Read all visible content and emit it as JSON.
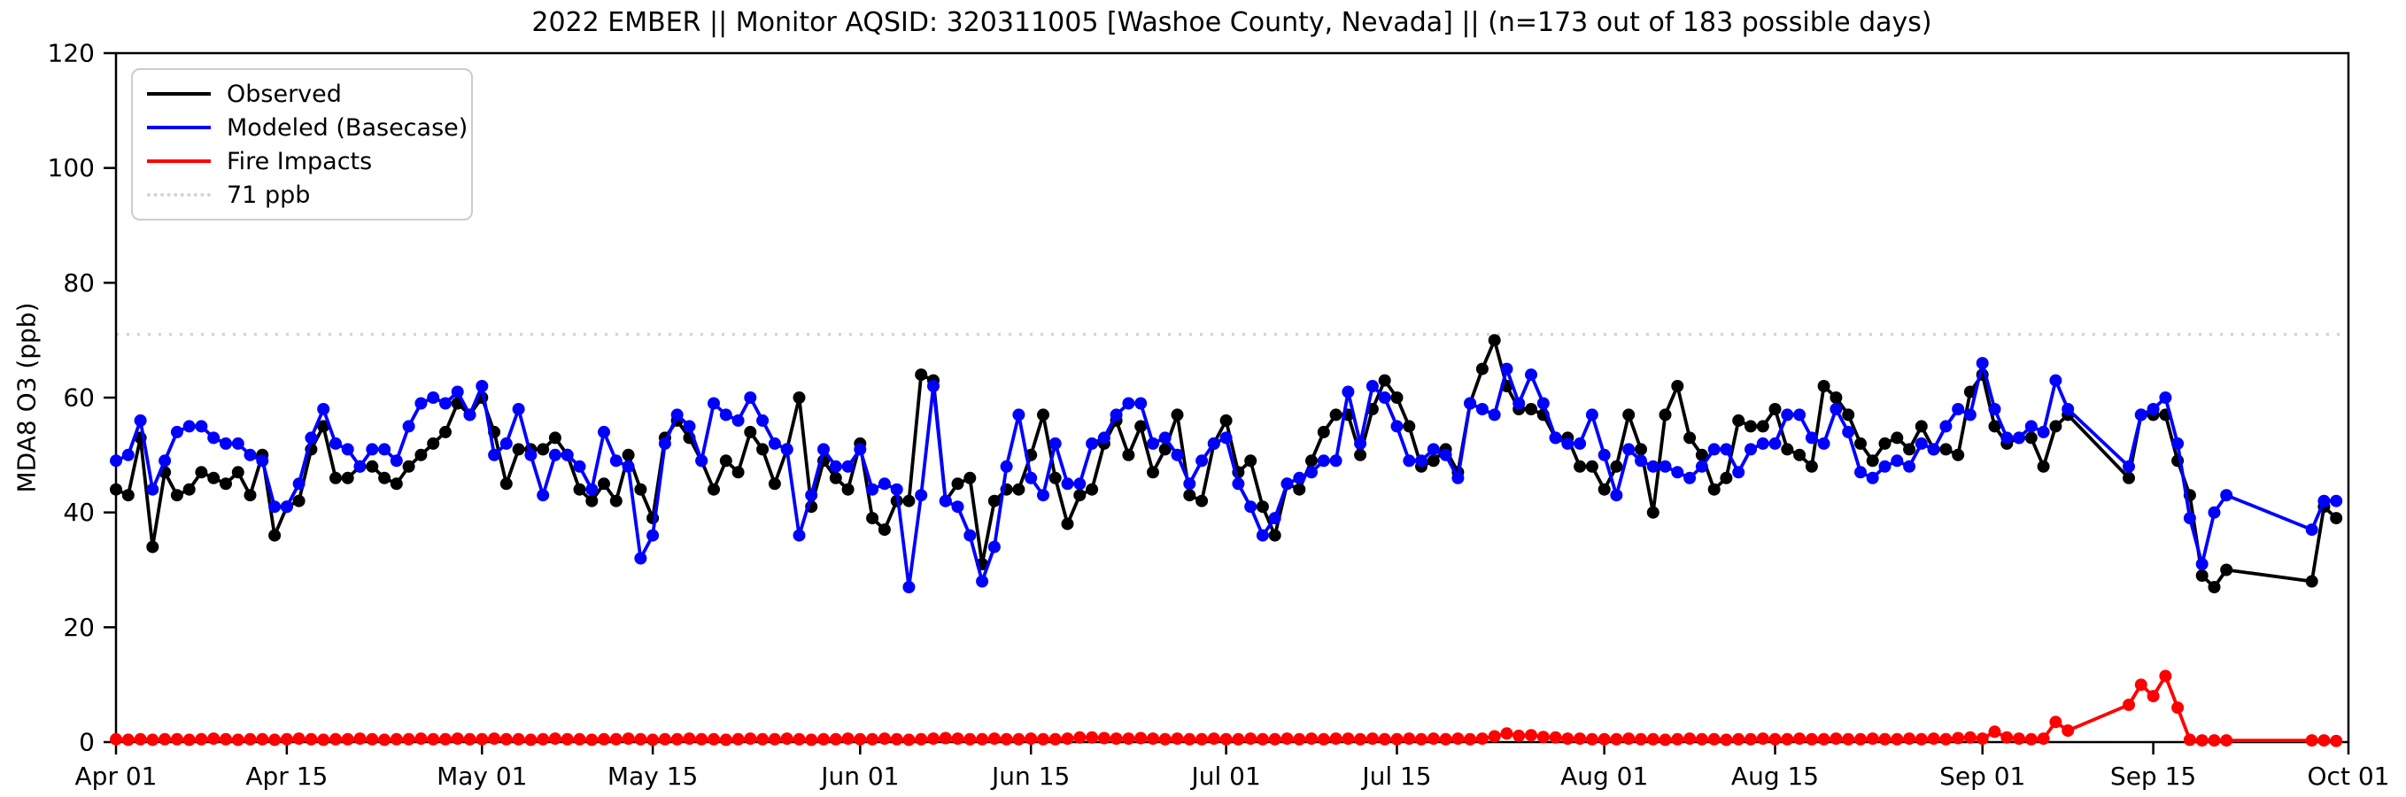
{
  "title": "2022 EMBER || Monitor AQSID: 320311005 [Washoe County, Nevada] || (n=173 out of 183 possible days)",
  "legend": {
    "observed_label": "Observed",
    "modeled_label": "Modeled (Basecase)",
    "fire_label": "Fire Impacts",
    "threshold_label": "71 ppb"
  },
  "colors": {
    "observed": "#000000",
    "modeled": "#0000ff",
    "fire": "#ff0000",
    "threshold": "#d4d4d4",
    "frame": "#000000",
    "background": "#ffffff"
  },
  "chart_data": {
    "type": "line",
    "title": "2022 EMBER || Monitor AQSID: 320311005 [Washoe County, Nevada] || (n=173 out of 183 possible days)",
    "xlabel": "",
    "ylabel": "MDA8 O3 (ppb)",
    "ylim": [
      0,
      120
    ],
    "yticks": [
      0,
      20,
      40,
      60,
      80,
      100,
      120
    ],
    "grid": false,
    "legend_position": "upper left",
    "n_observed_days": 173,
    "n_possible_days": 183,
    "missing_day_ranges": [
      "Sep 09-Sep 12",
      "Sep 22-Sep 27"
    ],
    "total_days": 183,
    "start_date": "Apr 01",
    "end_date": "Sep 30",
    "xticks": [
      {
        "label": "Apr 01",
        "day": 0
      },
      {
        "label": "Apr 15",
        "day": 14
      },
      {
        "label": "May 01",
        "day": 30
      },
      {
        "label": "May 15",
        "day": 44
      },
      {
        "label": "Jun 01",
        "day": 61
      },
      {
        "label": "Jun 15",
        "day": 75
      },
      {
        "label": "Jul 01",
        "day": 91
      },
      {
        "label": "Jul 15",
        "day": 105
      },
      {
        "label": "Aug 01",
        "day": 122
      },
      {
        "label": "Aug 15",
        "day": 136
      },
      {
        "label": "Sep 01",
        "day": 153
      },
      {
        "label": "Sep 15",
        "day": 167
      },
      {
        "label": "Oct 01",
        "day": 183
      }
    ],
    "reference_line": {
      "label": "71 ppb",
      "value": 71,
      "style": "dotted",
      "color": "#d4d4d4"
    },
    "series": [
      {
        "name": "Observed",
        "color": "#000000",
        "values": [
          44,
          43,
          53,
          34,
          47,
          43,
          44,
          47,
          46,
          45,
          47,
          43,
          50,
          36,
          41,
          42,
          51,
          55,
          46,
          46,
          48,
          48,
          46,
          45,
          48,
          50,
          52,
          54,
          59,
          57,
          60,
          54,
          45,
          51,
          51,
          51,
          53,
          50,
          44,
          42,
          45,
          42,
          50,
          44,
          39,
          53,
          56,
          53,
          49,
          44,
          49,
          47,
          54,
          51,
          45,
          51,
          60,
          41,
          49,
          46,
          44,
          52,
          39,
          37,
          42,
          42,
          64,
          63,
          42,
          45,
          46,
          31,
          42,
          44,
          44,
          50,
          57,
          46,
          38,
          43,
          44,
          52,
          56,
          50,
          55,
          47,
          51,
          57,
          43,
          42,
          52,
          56,
          47,
          49,
          41,
          36,
          45,
          44,
          49,
          54,
          57,
          57,
          50,
          58,
          63,
          60,
          55,
          48,
          49,
          51,
          47,
          59,
          65,
          70,
          62,
          58,
          58,
          57,
          53,
          53,
          48,
          48,
          44,
          48,
          57,
          51,
          40,
          57,
          62,
          53,
          50,
          44,
          46,
          56,
          55,
          55,
          58,
          51,
          50,
          48,
          62,
          60,
          57,
          52,
          49,
          52,
          53,
          51,
          55,
          51,
          51,
          50,
          61,
          64,
          55,
          52,
          53,
          53,
          48,
          55,
          57,
          null,
          null,
          null,
          null,
          46,
          57,
          57,
          57,
          49,
          43,
          29,
          27,
          30,
          null,
          null,
          null,
          null,
          null,
          null,
          28,
          41,
          39
        ]
      },
      {
        "name": "Modeled (Basecase)",
        "color": "#0000ff",
        "values": [
          49,
          50,
          56,
          44,
          49,
          54,
          55,
          55,
          53,
          52,
          52,
          50,
          49,
          41,
          41,
          45,
          53,
          58,
          52,
          51,
          48,
          51,
          51,
          49,
          55,
          59,
          60,
          59,
          61,
          57,
          62,
          50,
          52,
          58,
          50,
          43,
          50,
          50,
          48,
          44,
          54,
          49,
          48,
          32,
          36,
          52,
          57,
          55,
          49,
          59,
          57,
          56,
          60,
          56,
          52,
          51,
          36,
          43,
          51,
          48,
          48,
          51,
          44,
          45,
          44,
          27,
          43,
          62,
          42,
          41,
          36,
          28,
          34,
          48,
          57,
          46,
          43,
          52,
          45,
          45,
          52,
          53,
          57,
          59,
          59,
          52,
          53,
          50,
          45,
          49,
          52,
          53,
          45,
          41,
          36,
          39,
          45,
          46,
          47,
          49,
          49,
          61,
          52,
          62,
          60,
          55,
          49,
          49,
          51,
          50,
          46,
          59,
          58,
          57,
          65,
          59,
          64,
          59,
          53,
          52,
          52,
          57,
          50,
          43,
          51,
          49,
          48,
          48,
          47,
          46,
          48,
          51,
          51,
          47,
          51,
          52,
          52,
          57,
          57,
          53,
          52,
          58,
          54,
          47,
          46,
          48,
          49,
          48,
          52,
          51,
          55,
          58,
          57,
          66,
          58,
          53,
          53,
          55,
          54,
          63,
          58,
          null,
          null,
          null,
          null,
          48,
          57,
          58,
          60,
          52,
          39,
          31,
          40,
          43,
          null,
          null,
          null,
          null,
          null,
          null,
          37,
          42,
          42
        ]
      },
      {
        "name": "Fire Impacts",
        "color": "#ff0000",
        "values": [
          0.5,
          0.4,
          0.5,
          0.4,
          0.5,
          0.5,
          0.4,
          0.5,
          0.6,
          0.5,
          0.4,
          0.5,
          0.5,
          0.4,
          0.5,
          0.6,
          0.5,
          0.4,
          0.5,
          0.5,
          0.6,
          0.5,
          0.4,
          0.5,
          0.5,
          0.6,
          0.5,
          0.5,
          0.6,
          0.5,
          0.5,
          0.6,
          0.5,
          0.5,
          0.4,
          0.5,
          0.6,
          0.5,
          0.5,
          0.4,
          0.5,
          0.5,
          0.6,
          0.5,
          0.4,
          0.5,
          0.5,
          0.6,
          0.5,
          0.5,
          0.4,
          0.5,
          0.6,
          0.5,
          0.5,
          0.6,
          0.5,
          0.4,
          0.5,
          0.5,
          0.6,
          0.5,
          0.5,
          0.6,
          0.5,
          0.4,
          0.5,
          0.6,
          0.7,
          0.6,
          0.5,
          0.5,
          0.6,
          0.5,
          0.5,
          0.6,
          0.5,
          0.5,
          0.6,
          0.8,
          0.8,
          0.7,
          0.6,
          0.6,
          0.7,
          0.6,
          0.5,
          0.6,
          0.5,
          0.5,
          0.6,
          0.5,
          0.5,
          0.6,
          0.5,
          0.5,
          0.6,
          0.5,
          0.6,
          0.5,
          0.6,
          0.6,
          0.5,
          0.6,
          0.5,
          0.5,
          0.6,
          0.5,
          0.6,
          0.5,
          0.6,
          0.5,
          0.6,
          1.0,
          1.5,
          1.1,
          1.2,
          0.9,
          0.8,
          0.6,
          0.6,
          0.5,
          0.5,
          0.5,
          0.6,
          0.5,
          0.5,
          0.4,
          0.5,
          0.6,
          0.5,
          0.5,
          0.4,
          0.5,
          0.5,
          0.6,
          0.5,
          0.5,
          0.6,
          0.5,
          0.5,
          0.6,
          0.5,
          0.5,
          0.6,
          0.5,
          0.5,
          0.6,
          0.5,
          0.6,
          0.5,
          0.7,
          0.8,
          0.6,
          1.8,
          0.8,
          0.6,
          0.5,
          0.6,
          3.5,
          2.0,
          null,
          null,
          null,
          null,
          6.5,
          10,
          8,
          11.5,
          6,
          0.4,
          0.3,
          0.3,
          0.3,
          null,
          null,
          null,
          null,
          null,
          null,
          0.3,
          0.3,
          0.2
        ]
      }
    ]
  }
}
